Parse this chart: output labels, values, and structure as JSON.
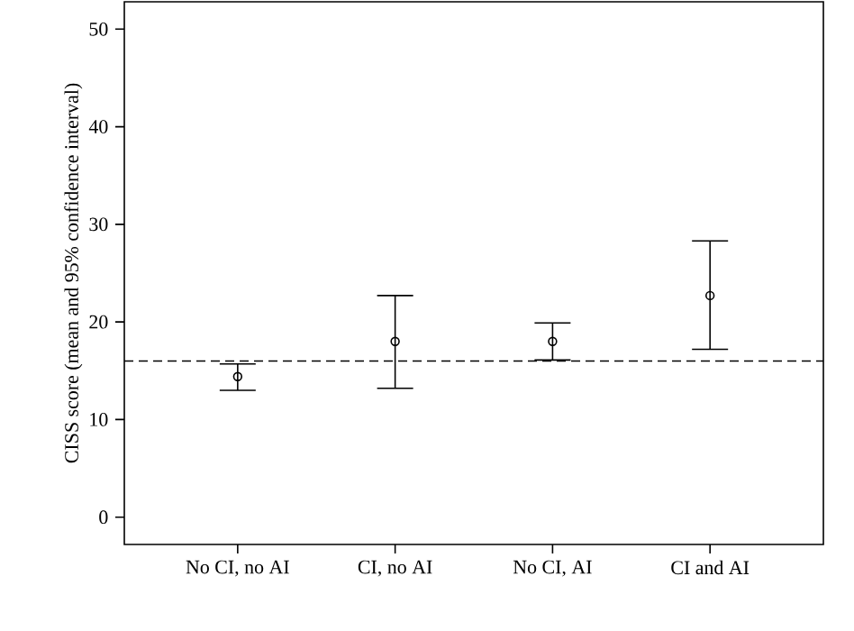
{
  "chart_data": {
    "type": "scatter",
    "ylabel": "CISS score (mean and 95% confidence interval)",
    "categories": [
      "No CI, no AI",
      "CI, no AI",
      "No CI, AI",
      "CI and AI"
    ],
    "values": [
      14.4,
      18.0,
      18.0,
      22.7
    ],
    "errors": [
      [
        13.0,
        15.7
      ],
      [
        13.2,
        22.7
      ],
      [
        16.1,
        19.9
      ],
      [
        17.2,
        28.3
      ]
    ],
    "color": "#000000",
    "marker": "circle",
    "grid": false,
    "ylim": [
      -2.8,
      52.8
    ],
    "yticks": [
      0,
      10,
      20,
      30,
      40,
      50
    ],
    "ref_lines": [
      {
        "axis": "y",
        "value": 16,
        "line_style": "dashed",
        "color": "#000000"
      }
    ]
  }
}
